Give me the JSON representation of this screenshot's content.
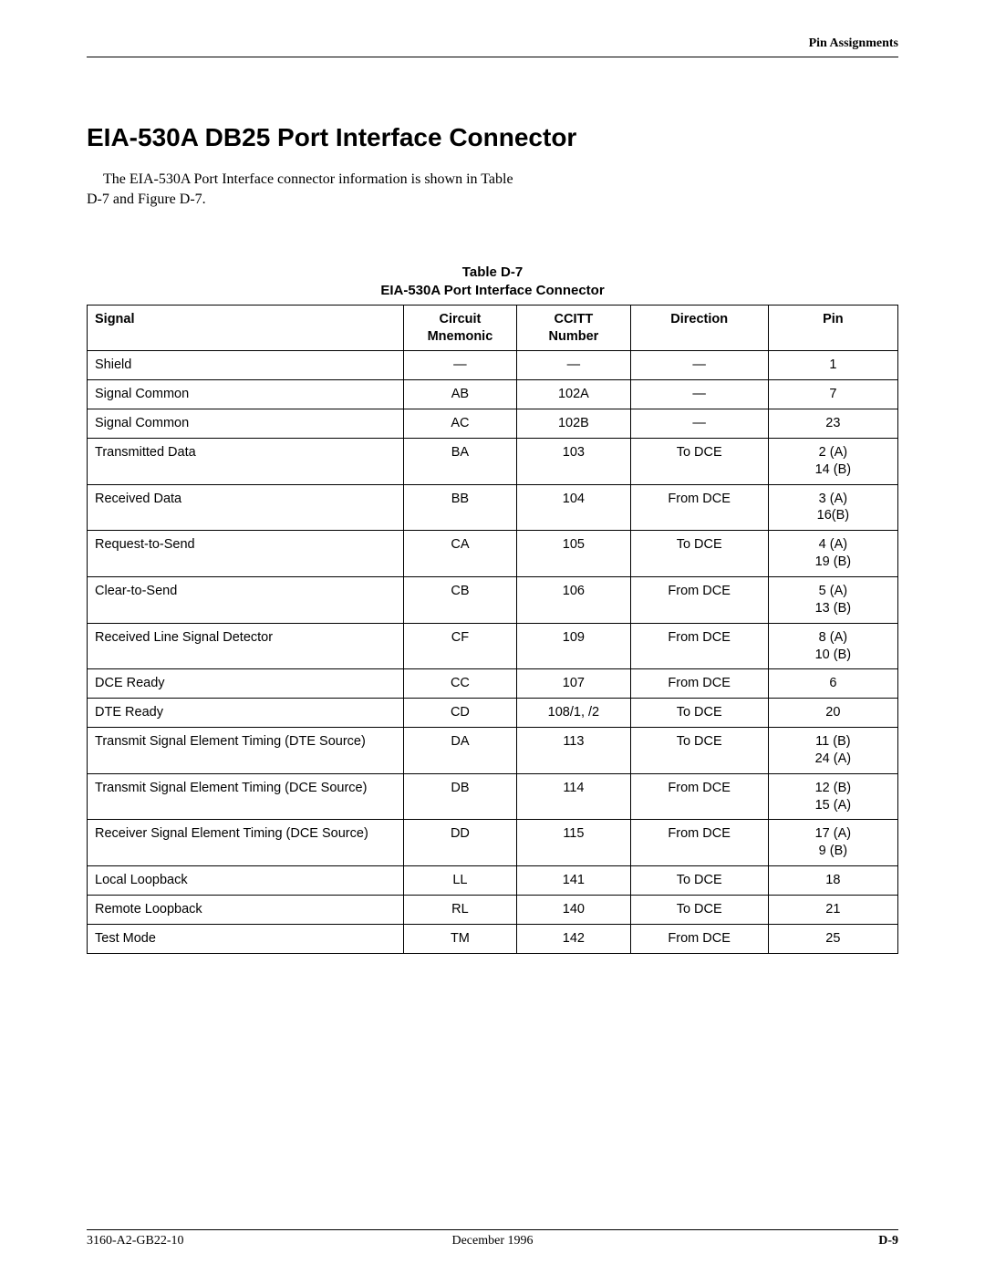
{
  "header": {
    "section": "Pin Assignments"
  },
  "title": "EIA-530A DB25 Port Interface Connector",
  "intro": "The EIA-530A Port Interface connector information is shown in Table D-7 and Figure D-7.",
  "table": {
    "caption_line1": "Table D-7",
    "caption_line2": "EIA-530A Port Interface Connector",
    "columns": {
      "signal": "Signal",
      "circuit": "Circuit\nMnemonic",
      "ccitt": "CCITT\nNumber",
      "direction": "Direction",
      "pin": "Pin"
    },
    "rows": [
      {
        "signal": "Shield",
        "circuit": "—",
        "ccitt": "—",
        "direction": "—",
        "pin": "1"
      },
      {
        "signal": "Signal Common",
        "circuit": "AB",
        "ccitt": "102A",
        "direction": "—",
        "pin": "7"
      },
      {
        "signal": "Signal Common",
        "circuit": "AC",
        "ccitt": "102B",
        "direction": "—",
        "pin": "23"
      },
      {
        "signal": "Transmitted Data",
        "circuit": "BA",
        "ccitt": "103",
        "direction": "To DCE",
        "pin": "2 (A)\n14 (B)"
      },
      {
        "signal": "Received Data",
        "circuit": "BB",
        "ccitt": "104",
        "direction": "From DCE",
        "pin": "3 (A)\n16(B)"
      },
      {
        "signal": "Request-to-Send",
        "circuit": "CA",
        "ccitt": "105",
        "direction": "To DCE",
        "pin": "4 (A)\n19 (B)"
      },
      {
        "signal": "Clear-to-Send",
        "circuit": "CB",
        "ccitt": "106",
        "direction": "From DCE",
        "pin": "5 (A)\n13 (B)"
      },
      {
        "signal": "Received Line Signal Detector",
        "circuit": "CF",
        "ccitt": "109",
        "direction": "From DCE",
        "pin": "8 (A)\n10 (B)"
      },
      {
        "signal": "DCE Ready",
        "circuit": "CC",
        "ccitt": "107",
        "direction": "From DCE",
        "pin": "6"
      },
      {
        "signal": "DTE Ready",
        "circuit": "CD",
        "ccitt": "108/1, /2",
        "direction": "To DCE",
        "pin": "20"
      },
      {
        "signal": "Transmit Signal Element Timing (DTE Source)",
        "circuit": "DA",
        "ccitt": "113",
        "direction": "To DCE",
        "pin": "11 (B)\n24 (A)"
      },
      {
        "signal": "Transmit Signal Element Timing (DCE Source)",
        "circuit": "DB",
        "ccitt": "114",
        "direction": "From DCE",
        "pin": "12 (B)\n15 (A)"
      },
      {
        "signal": "Receiver Signal Element Timing (DCE Source)",
        "circuit": "DD",
        "ccitt": "115",
        "direction": "From DCE",
        "pin": "17 (A)\n9 (B)"
      },
      {
        "signal": "Local Loopback",
        "circuit": "LL",
        "ccitt": "141",
        "direction": "To DCE",
        "pin": "18"
      },
      {
        "signal": "Remote Loopback",
        "circuit": "RL",
        "ccitt": "140",
        "direction": "To DCE",
        "pin": "21"
      },
      {
        "signal": "Test Mode",
        "circuit": "TM",
        "ccitt": "142",
        "direction": "From DCE",
        "pin": "25"
      }
    ]
  },
  "footer": {
    "left": "3160-A2-GB22-10",
    "center": "December 1996",
    "right": "D-9"
  }
}
